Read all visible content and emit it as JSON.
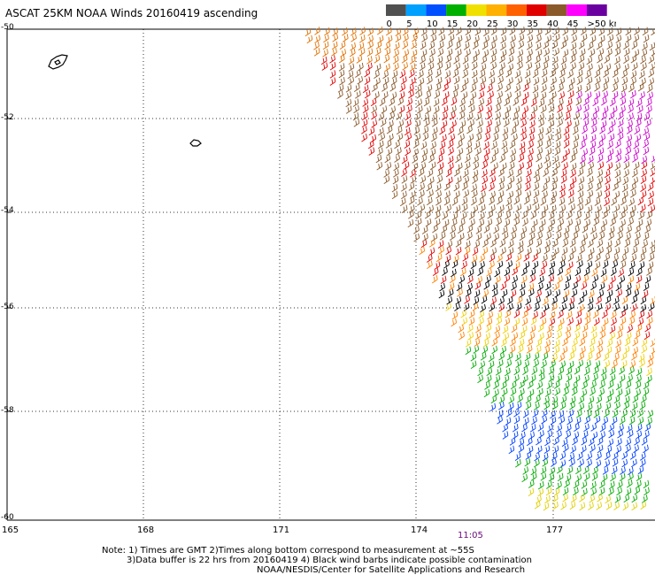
{
  "title": "ASCAT 25KM NOAA Winds 20160419 ascending",
  "legend": {
    "labels": [
      "0",
      "5",
      "10",
      "15",
      "20",
      "25",
      "30",
      "35",
      "40",
      "45",
      ">50 knots"
    ],
    "colors": [
      "#505050",
      "#00a0ff",
      "#0050ff",
      "#00b000",
      "#f0e000",
      "#ffb000",
      "#ff6000",
      "#e00000",
      "#8b5a2b",
      "#ff00ff",
      "#6a00a0"
    ]
  },
  "axes": {
    "x_ticks": [
      "165",
      "168",
      "171",
      "174",
      "177"
    ],
    "y_ticks": [
      "-50",
      "-52",
      "-54",
      "-56",
      "-58",
      "-60"
    ]
  },
  "time_label": "11:05",
  "notes": {
    "line1": "Note: 1) Times are GMT 2)Times along bottom correspond to measurement at ~55S",
    "line2": "3)Data buffer is 22 hrs from 20160419 4) Black wind barbs indicate possible contamination",
    "credit": "NOAA/NESDIS/Center for Satellite Applications and Research"
  }
}
